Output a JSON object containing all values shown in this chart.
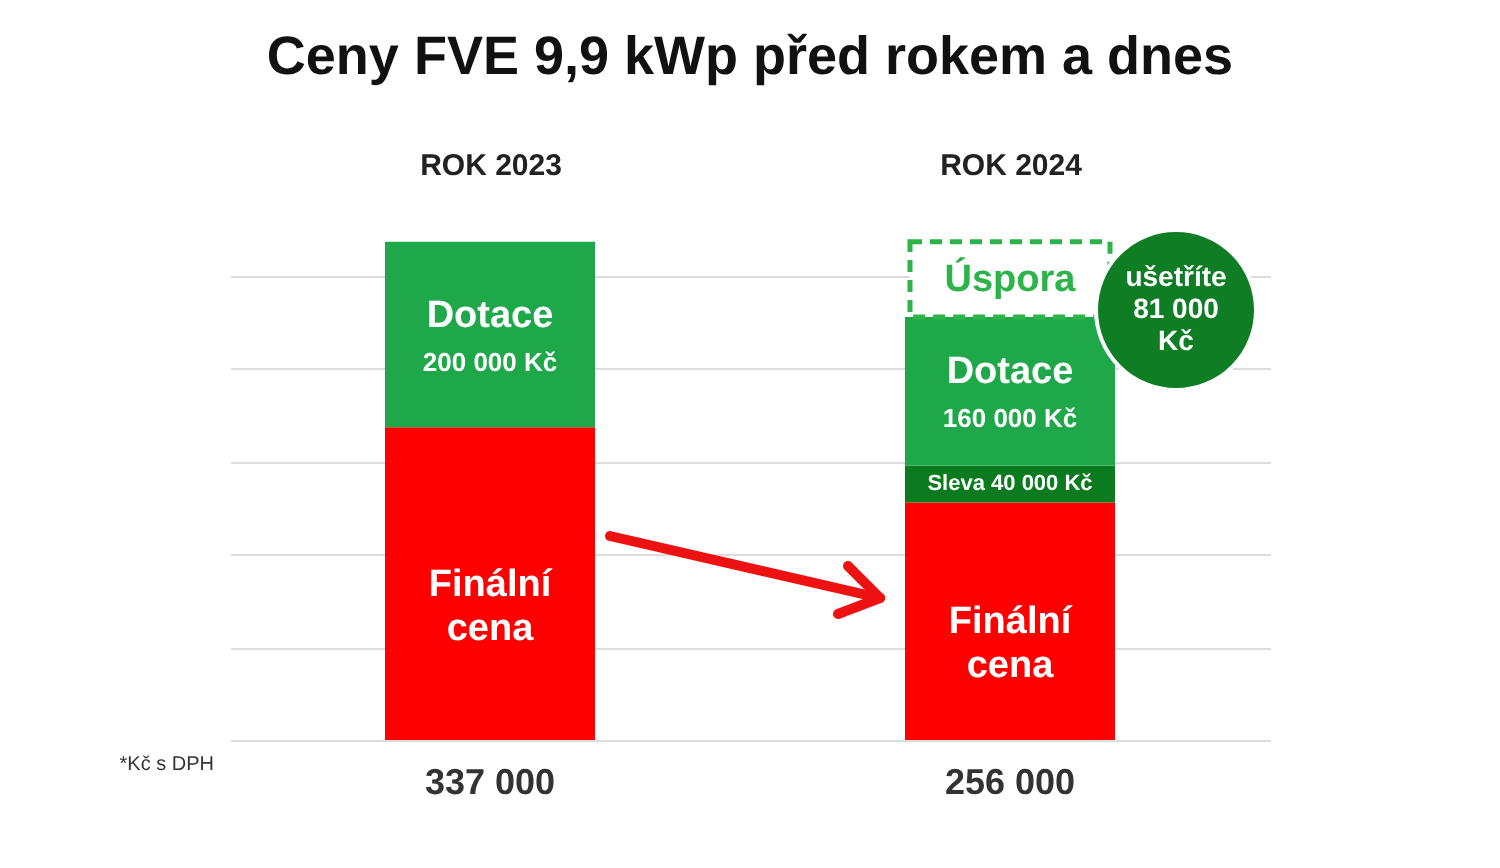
{
  "chart_data": {
    "type": "bar",
    "title": "Ceny FVE 9,9 kWp před rokem a dnes",
    "categories": [
      "ROK 2023",
      "ROK 2024"
    ],
    "stacked": true,
    "grid": "y",
    "series": [
      {
        "name": "Finální cena",
        "color": "#ff0000",
        "values": [
          337000,
          256000
        ]
      },
      {
        "name": "Sleva",
        "color": "#0c7a1e",
        "values": [
          null,
          40000
        ],
        "value_labels": [
          null,
          "40 000 Kč"
        ]
      },
      {
        "name": "Dotace",
        "color": "#1ea84a",
        "values": [
          200000,
          160000
        ],
        "value_labels": [
          "200 000 Kč",
          "160 000 Kč"
        ]
      },
      {
        "name": "Úspora",
        "color": "#2db34a",
        "line_style": "dashed",
        "values": [
          null,
          81000
        ]
      }
    ],
    "annotations": [
      "337 000",
      "256 000",
      "ušetříte\n81 000\nKč",
      "*Kč s DPH"
    ]
  }
}
